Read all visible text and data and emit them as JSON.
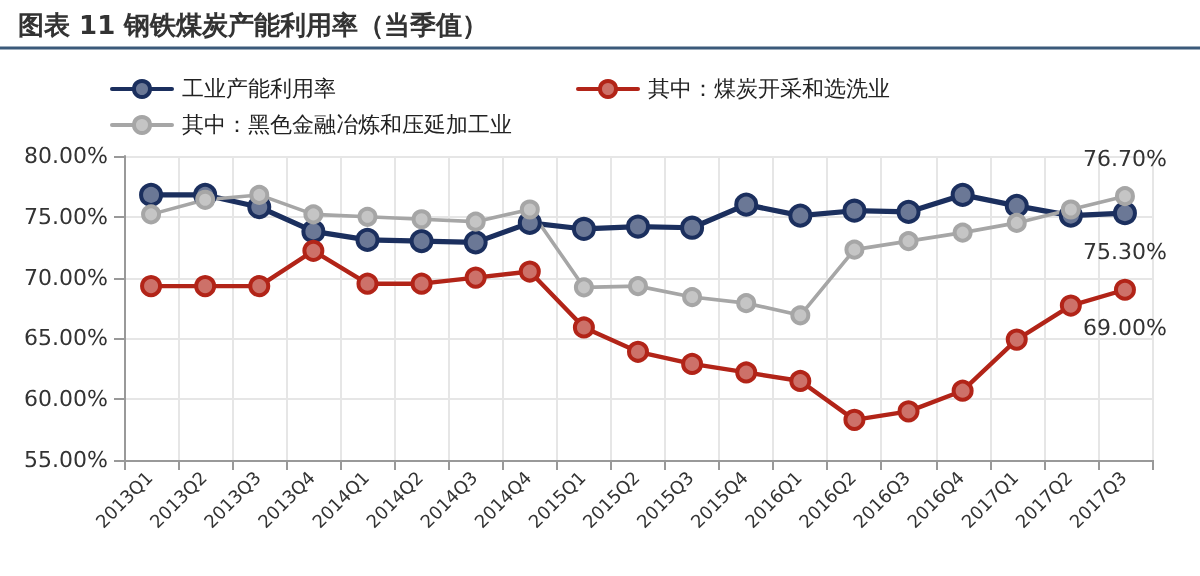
{
  "chart_data": {
    "type": "line",
    "title": "图表 11 钢铁煤炭产能利用率（当季值）",
    "categories": [
      "2013Q1",
      "2013Q2",
      "2013Q3",
      "2013Q4",
      "2014Q1",
      "2014Q2",
      "2014Q3",
      "2014Q4",
      "2015Q1",
      "2015Q2",
      "2015Q3",
      "2015Q4",
      "2016Q1",
      "2016Q2",
      "2016Q3",
      "2016Q4",
      "2017Q1",
      "2017Q2",
      "2017Q3"
    ],
    "series": [
      {
        "name": "工业产能利用率",
        "color": "#1b2f5e",
        "values": [
          76.8,
          76.8,
          75.8,
          73.8,
          73.1,
          73.0,
          72.9,
          74.5,
          74.0,
          74.2,
          74.1,
          76.0,
          75.1,
          75.5,
          75.4,
          76.8,
          75.9,
          75.1,
          75.3
        ],
        "value_labels": [
          null,
          null,
          null,
          null,
          null,
          null,
          null,
          null,
          null,
          null,
          null,
          null,
          null,
          null,
          null,
          null,
          null,
          null,
          "75.30%"
        ]
      },
      {
        "name": "其中：煤炭开采和选洗业",
        "color": "#b22418",
        "values": [
          69.3,
          69.3,
          69.3,
          72.2,
          69.5,
          69.5,
          70.0,
          70.5,
          65.9,
          63.9,
          62.9,
          62.2,
          61.5,
          58.3,
          59.0,
          60.7,
          64.9,
          67.7,
          69.0
        ],
        "value_labels": [
          null,
          null,
          null,
          null,
          null,
          null,
          null,
          null,
          null,
          null,
          null,
          null,
          null,
          null,
          null,
          null,
          null,
          null,
          "69.00%"
        ]
      },
      {
        "name": "其中：黑色金融冶炼和压延加工业",
        "color": "#a6a6a6",
        "values": [
          75.2,
          76.4,
          76.8,
          75.2,
          75.0,
          74.8,
          74.6,
          75.6,
          69.2,
          69.3,
          68.4,
          67.9,
          66.9,
          72.3,
          73.0,
          73.7,
          74.5,
          75.6,
          76.7
        ],
        "value_labels": [
          null,
          null,
          null,
          null,
          null,
          null,
          null,
          null,
          null,
          null,
          null,
          null,
          null,
          null,
          null,
          null,
          null,
          null,
          "76.70%"
        ]
      }
    ],
    "ylim": [
      55,
      80
    ],
    "yticks": [
      {
        "value": 55,
        "label": "55.00%"
      },
      {
        "value": 60,
        "label": "60.00%"
      },
      {
        "value": 65,
        "label": "65.00%"
      },
      {
        "value": 70,
        "label": "70.00%"
      },
      {
        "value": 75,
        "label": "75.00%"
      },
      {
        "value": 80,
        "label": "80.00%"
      }
    ],
    "grid": true,
    "legend": "top",
    "marker": "circle"
  }
}
